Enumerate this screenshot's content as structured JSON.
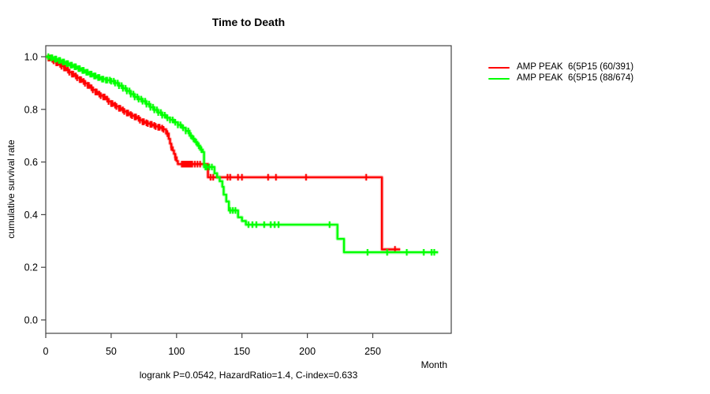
{
  "figure": {
    "title": "Time to Death",
    "ylabel": "cumulative survival rate",
    "xlabel": "Month",
    "annotation": "logrank P=0.0542, HazardRatio=1.4, C-index=0.633"
  },
  "chart_data": {
    "type": "line",
    "subtype": "kaplan-meier-step-curves",
    "title": "Time to Death",
    "xlabel": "Month",
    "ylabel": "cumulative survival rate",
    "xlim": [
      0,
      310
    ],
    "ylim": [
      0,
      1
    ],
    "x_ticks": [
      0,
      50,
      100,
      150,
      200,
      250
    ],
    "y_ticks": [
      0.0,
      0.2,
      0.4,
      0.6,
      0.8,
      1.0
    ],
    "y_tick_labels": [
      "0.0",
      "0.2",
      "0.4",
      "0.6",
      "0.8",
      "1.0"
    ],
    "grid": false,
    "legend_position": "top-right-outside",
    "annotation": "logrank P=0.0542, HazardRatio=1.4, C-index=0.633",
    "axis_color": "#444444",
    "series": [
      {
        "name": "AMP PEAK  6(5P15 (60/391)",
        "color": "#ff0000",
        "end_month": 271,
        "steps": [
          [
            0,
            1.0
          ],
          [
            2,
            0.995
          ],
          [
            4,
            0.99
          ],
          [
            6,
            0.984
          ],
          [
            8,
            0.977
          ],
          [
            10,
            0.971
          ],
          [
            12,
            0.964
          ],
          [
            14,
            0.957
          ],
          [
            16,
            0.949
          ],
          [
            18,
            0.941
          ],
          [
            20,
            0.934
          ],
          [
            22,
            0.927
          ],
          [
            24,
            0.92
          ],
          [
            26,
            0.913
          ],
          [
            28,
            0.906
          ],
          [
            30,
            0.899
          ],
          [
            32,
            0.891
          ],
          [
            34,
            0.882
          ],
          [
            36,
            0.874
          ],
          [
            38,
            0.866
          ],
          [
            40,
            0.858
          ],
          [
            42,
            0.852
          ],
          [
            44,
            0.847
          ],
          [
            46,
            0.839
          ],
          [
            48,
            0.83
          ],
          [
            50,
            0.822
          ],
          [
            52,
            0.816
          ],
          [
            54,
            0.811
          ],
          [
            56,
            0.804
          ],
          [
            58,
            0.798
          ],
          [
            60,
            0.792
          ],
          [
            62,
            0.786
          ],
          [
            64,
            0.78
          ],
          [
            66,
            0.776
          ],
          [
            68,
            0.771
          ],
          [
            70,
            0.766
          ],
          [
            72,
            0.759
          ],
          [
            74,
            0.753
          ],
          [
            76,
            0.749
          ],
          [
            78,
            0.746
          ],
          [
            80,
            0.743
          ],
          [
            82,
            0.739
          ],
          [
            84,
            0.735
          ],
          [
            86,
            0.732
          ],
          [
            88,
            0.729
          ],
          [
            90,
            0.724
          ],
          [
            92,
            0.708
          ],
          [
            94,
            0.688
          ],
          [
            95,
            0.67
          ],
          [
            96,
            0.656
          ],
          [
            97,
            0.644
          ],
          [
            98,
            0.631
          ],
          [
            99,
            0.618
          ],
          [
            100,
            0.604
          ],
          [
            101,
            0.592
          ],
          [
            124,
            0.542
          ],
          [
            257,
            0.268
          ]
        ],
        "censor_months": [
          2,
          3,
          5,
          6,
          8,
          9,
          11,
          12,
          14,
          15,
          17,
          18,
          20,
          21,
          23,
          24,
          26,
          27,
          29,
          30,
          32,
          33,
          35,
          36,
          38,
          39,
          41,
          42,
          44,
          45,
          47,
          48,
          50,
          51,
          53,
          54,
          56,
          57,
          59,
          60,
          62,
          63,
          65,
          66,
          68,
          69,
          71,
          72,
          74,
          75,
          77,
          78,
          80,
          81,
          83,
          84,
          86,
          87,
          89,
          90,
          93,
          96,
          99,
          104,
          105,
          106,
          107,
          108,
          109,
          110,
          111,
          112,
          114,
          116,
          118,
          126,
          128,
          139,
          141,
          147,
          150,
          170,
          176,
          199,
          245,
          267
        ]
      },
      {
        "name": "AMP PEAK  6(5P15 (88/674)",
        "color": "#00ff00",
        "end_month": 300,
        "steps": [
          [
            0,
            1.0
          ],
          [
            3,
            0.996
          ],
          [
            6,
            0.991
          ],
          [
            9,
            0.986
          ],
          [
            12,
            0.98
          ],
          [
            15,
            0.974
          ],
          [
            18,
            0.968
          ],
          [
            21,
            0.962
          ],
          [
            24,
            0.955
          ],
          [
            27,
            0.948
          ],
          [
            30,
            0.941
          ],
          [
            33,
            0.934
          ],
          [
            36,
            0.927
          ],
          [
            39,
            0.921
          ],
          [
            42,
            0.915
          ],
          [
            46,
            0.911
          ],
          [
            50,
            0.907
          ],
          [
            53,
            0.9
          ],
          [
            56,
            0.89
          ],
          [
            59,
            0.88
          ],
          [
            62,
            0.87
          ],
          [
            65,
            0.858
          ],
          [
            68,
            0.847
          ],
          [
            71,
            0.839
          ],
          [
            74,
            0.831
          ],
          [
            77,
            0.82
          ],
          [
            80,
            0.808
          ],
          [
            83,
            0.798
          ],
          [
            86,
            0.788
          ],
          [
            89,
            0.778
          ],
          [
            92,
            0.768
          ],
          [
            95,
            0.76
          ],
          [
            98,
            0.751
          ],
          [
            101,
            0.741
          ],
          [
            104,
            0.73
          ],
          [
            107,
            0.718
          ],
          [
            110,
            0.7
          ],
          [
            112,
            0.688
          ],
          [
            114,
            0.676
          ],
          [
            116,
            0.662
          ],
          [
            118,
            0.647
          ],
          [
            120,
            0.638
          ],
          [
            121,
            0.581
          ],
          [
            129,
            0.557
          ],
          [
            131,
            0.542
          ],
          [
            133,
            0.527
          ],
          [
            135,
            0.506
          ],
          [
            136,
            0.476
          ],
          [
            138,
            0.45
          ],
          [
            140,
            0.416
          ],
          [
            147,
            0.39
          ],
          [
            150,
            0.376
          ],
          [
            153,
            0.362
          ],
          [
            223,
            0.308
          ],
          [
            228,
            0.257
          ]
        ],
        "censor_months": [
          2,
          4,
          5,
          7,
          8,
          10,
          11,
          13,
          14,
          16,
          17,
          19,
          20,
          22,
          23,
          25,
          26,
          28,
          29,
          31,
          32,
          34,
          35,
          37,
          38,
          40,
          41,
          43,
          44,
          46,
          47,
          49,
          50,
          52,
          53,
          55,
          56,
          58,
          59,
          61,
          62,
          64,
          65,
          67,
          68,
          70,
          71,
          73,
          74,
          76,
          77,
          79,
          80,
          82,
          83,
          85,
          86,
          88,
          89,
          91,
          93,
          95,
          97,
          99,
          101,
          103,
          105,
          107,
          109,
          111,
          113,
          115,
          117,
          119,
          122,
          123,
          125,
          127,
          141,
          143,
          145,
          155,
          158,
          161,
          167,
          172,
          175,
          178,
          217,
          246,
          261,
          276,
          289,
          295,
          297
        ]
      }
    ]
  }
}
